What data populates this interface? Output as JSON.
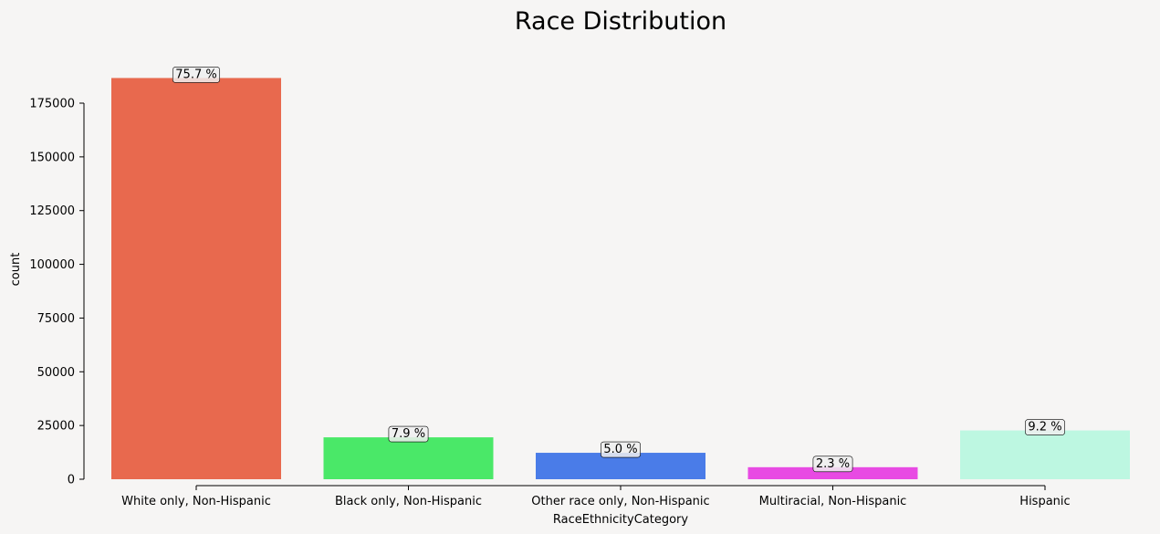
{
  "chart_data": {
    "type": "bar",
    "title": "Race Distribution",
    "xlabel": "RaceEthnicityCategory",
    "ylabel": "count",
    "categories": [
      "White only, Non-Hispanic",
      "Black only, Non-Hispanic",
      "Other race only, Non-Hispanic",
      "Multiracial, Non-Hispanic",
      "Hispanic"
    ],
    "values": [
      186700,
      19500,
      12300,
      5600,
      22700
    ],
    "percent_labels": [
      "75.7 %",
      "7.9 %",
      "5.0 %",
      "2.3 %",
      "9.2 %"
    ],
    "colors": [
      "#e8694e",
      "#4ae868",
      "#4a7ce8",
      "#e84ae3",
      "#bdf7e1"
    ],
    "ylim": [
      0,
      175000
    ],
    "yticks": [
      0,
      25000,
      50000,
      75000,
      100000,
      125000,
      150000,
      175000
    ],
    "ytick_labels": [
      "0",
      "25000",
      "50000",
      "75000",
      "100000",
      "125000",
      "150000",
      "175000"
    ],
    "grid": false,
    "legend": false
  }
}
